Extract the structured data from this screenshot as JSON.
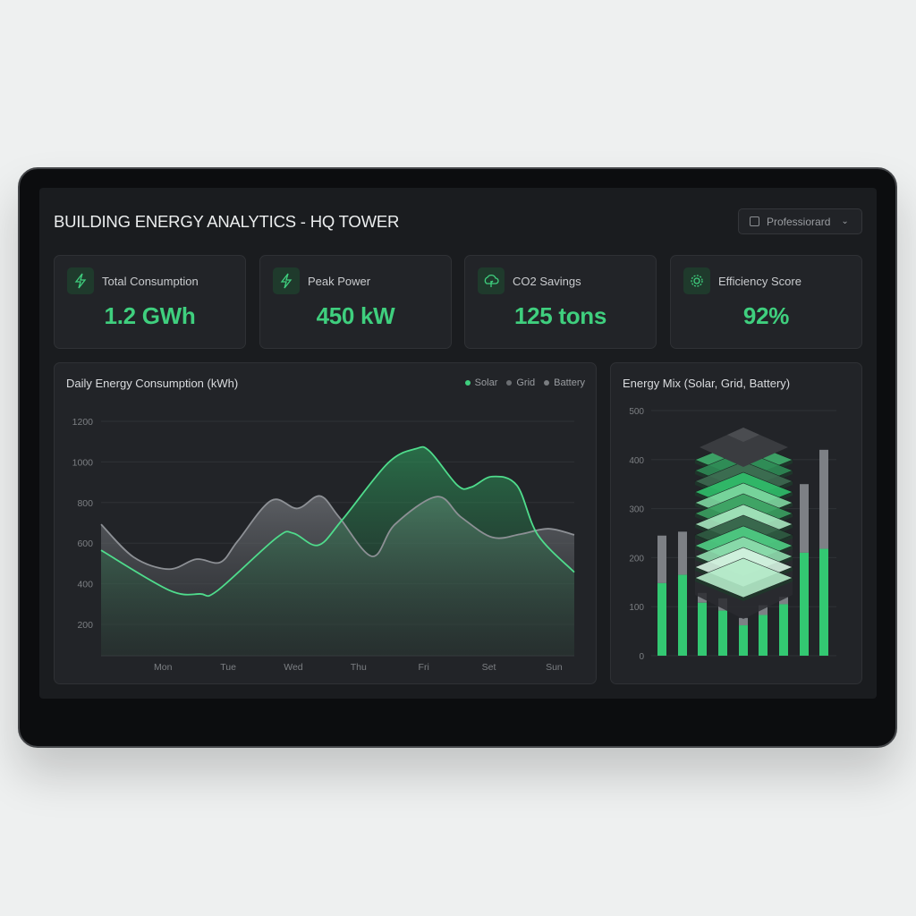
{
  "header": {
    "title": "BUILDING ENERGY ANALYTICS - HQ TOWER",
    "dropdown_value": "Professiorard"
  },
  "kpis": [
    {
      "label": "Total Consumption",
      "value": "1.2 GWh",
      "icon": "lightning-icon"
    },
    {
      "label": "Peak Power",
      "value": "450 kW",
      "icon": "lightning-icon"
    },
    {
      "label": "CO2 Savings",
      "value": "125 tons",
      "icon": "leaf-cloud-icon"
    },
    {
      "label": "Efficiency Score",
      "value": "92%",
      "icon": "gear-icon"
    }
  ],
  "colors": {
    "accent": "#3fcf7e",
    "grid": "#8a8d92",
    "screen": "#1a1c1f",
    "card": "#222428"
  },
  "chart_data": [
    {
      "type": "area",
      "title": "Daily Energy Consumption (kWh)",
      "legend": [
        "Solar",
        "Grid",
        "Battery"
      ],
      "legend_placement": "top-right",
      "categories": [
        "Mon",
        "Tue",
        "Wed",
        "Thu",
        "Fri",
        "Set",
        "Sun"
      ],
      "yticks": [
        "1200",
        "1000",
        "800",
        "600",
        "400",
        "200"
      ],
      "ylim": [
        0,
        1200
      ],
      "grid": true,
      "series": [
        {
          "name": "Solar",
          "color": "#3fcf7e",
          "points": [
            [
              -0.95,
              565
            ],
            [
              0.09,
              369
            ],
            [
              0.57,
              350
            ],
            [
              0.83,
              365
            ],
            [
              1.74,
              626
            ],
            [
              2.0,
              649
            ],
            [
              2.38,
              590
            ],
            [
              2.75,
              715
            ],
            [
              3.45,
              994
            ],
            [
              3.88,
              1065
            ],
            [
              4.09,
              1053
            ],
            [
              4.52,
              884
            ],
            [
              4.73,
              876
            ],
            [
              5.05,
              928
            ],
            [
              5.43,
              884
            ],
            [
              5.75,
              641
            ],
            [
              6.31,
              457
            ]
          ]
        },
        {
          "name": "Grid",
          "color": "#8a8d92",
          "points": [
            [
              -0.95,
              693
            ],
            [
              -0.45,
              531
            ],
            [
              0.09,
              472
            ],
            [
              0.51,
              521
            ],
            [
              0.88,
              506
            ],
            [
              1.15,
              612
            ],
            [
              1.66,
              810
            ],
            [
              2.06,
              771
            ],
            [
              2.41,
              832
            ],
            [
              2.7,
              729
            ],
            [
              3.21,
              535
            ],
            [
              3.56,
              693
            ],
            [
              4.2,
              829
            ],
            [
              4.57,
              729
            ],
            [
              5.05,
              629
            ],
            [
              5.48,
              644
            ],
            [
              5.91,
              671
            ],
            [
              6.31,
              641
            ]
          ]
        }
      ]
    },
    {
      "type": "bar",
      "title": "Energy Mix (Solar, Grid, Battery)",
      "yticks": [
        "500",
        "400",
        "300",
        "200",
        "100",
        "0"
      ],
      "ylim": [
        0,
        500
      ],
      "stacked": true,
      "series": [
        {
          "name": "Solar",
          "color": "#3fcf7e",
          "values": [
            148,
            165,
            108,
            92,
            62,
            83,
            105,
            210,
            218
          ]
        },
        {
          "name": "Grid",
          "color": "#7d8085",
          "values": [
            97,
            88,
            20,
            25,
            15,
            20,
            15,
            140,
            202
          ]
        }
      ]
    }
  ]
}
